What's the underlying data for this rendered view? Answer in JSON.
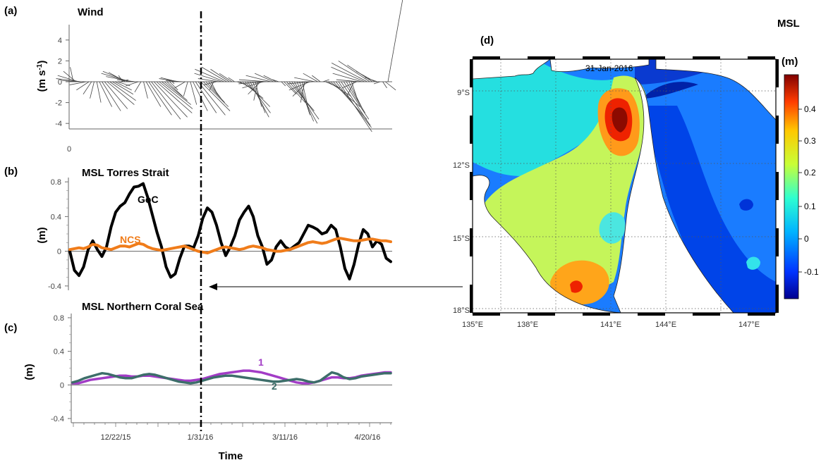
{
  "panels": {
    "a": {
      "letter": "(a)",
      "title": "Wind"
    },
    "b": {
      "letter": "(b)",
      "title": "MSL Torres Strait"
    },
    "c": {
      "letter": "(c)",
      "title": "MSL Northern Coral Sea"
    },
    "d": {
      "letter": "(d)",
      "date_label": "31-Jan-2016"
    }
  },
  "colors": {
    "goc": "#000000",
    "ncs": "#f07c1a",
    "series1": "#a23cc6",
    "series2": "#3d6e6a"
  },
  "chart_data": [
    {
      "id": "a",
      "type": "stick",
      "title": "Wind",
      "ylabel": "(m s-1)",
      "ylim": [
        -5,
        5
      ],
      "yticks": [
        4,
        2,
        0,
        -2,
        -4
      ],
      "x_tick_labels": [
        "0"
      ],
      "u": [
        -0.3,
        -1.2,
        -2.0,
        -2.4,
        -2.1,
        -1.6,
        -1.2,
        -0.8,
        -0.4,
        0.4,
        1.2,
        1.8,
        2.2,
        2.6,
        2.5,
        2.0,
        1.6,
        1.2,
        0.8,
        -0.4,
        -1.6,
        -2.4,
        -2.8,
        -2.6,
        -1.8,
        -1.2,
        -0.6,
        0.4,
        1.4,
        2.2,
        2.8,
        3.2,
        3.4,
        3.2,
        2.8,
        2.2,
        1.5,
        0.8,
        0.2,
        -0.8,
        -1.6,
        -2.0,
        -1.6,
        -1.0,
        -0.4,
        0.6,
        1.4,
        2.0,
        2.6,
        2.8,
        2.4,
        1.8,
        1.2,
        0.6,
        -0.4,
        -1.2,
        -2.0,
        -2.6,
        -2.8,
        -2.4,
        -1.8,
        -1.2,
        -0.6,
        0.6,
        1.4,
        2.0,
        2.4,
        2.2,
        1.8,
        1.2,
        0.6,
        -0.4,
        -1.2,
        -2.0,
        -2.6,
        -2.8,
        -2.4,
        -1.8,
        -1.2,
        -0.6,
        0.4,
        1.2,
        1.8,
        2.4,
        2.6,
        2.2,
        1.6,
        1.0,
        0.6,
        -0.4,
        -1.4,
        -2.0,
        -2.4,
        -2.0,
        -1.4,
        -0.8,
        0.6,
        1.4,
        2.2,
        2.8,
        3.2,
        3.4,
        3.2,
        2.8,
        2.4,
        1.8,
        1.2,
        0.6,
        -0.6,
        -1.4,
        -2.2,
        -2.8,
        -3.2,
        -3.4,
        -3.0,
        -2.4,
        -1.8,
        -1.2,
        -0.6,
        0.4,
        1.0,
        1.4
      ],
      "v": [
        1.4,
        1.0,
        0.6,
        0.3,
        0.1,
        -0.3,
        -0.8,
        -1.2,
        -1.6,
        -2.0,
        -2.4,
        -2.8,
        -2.6,
        -2.2,
        -1.8,
        -1.2,
        -0.8,
        -0.4,
        0.2,
        0.6,
        0.9,
        1.0,
        0.8,
        0.5,
        0.2,
        -0.4,
        -1.0,
        -1.6,
        -2.4,
        -3.2,
        -3.6,
        -3.4,
        -3.0,
        -2.6,
        -2.2,
        -1.8,
        -1.4,
        -0.8,
        -0.2,
        0.2,
        0.4,
        0.3,
        0.1,
        -0.6,
        -1.4,
        -2.2,
        -2.8,
        -3.0,
        -3.2,
        -2.8,
        -2.4,
        -2.0,
        -1.6,
        -1.2,
        -0.8,
        -0.3,
        0.3,
        0.8,
        1.2,
        1.4,
        1.2,
        0.8,
        0.4,
        -0.2,
        -0.8,
        -1.6,
        -2.4,
        -3.0,
        -3.4,
        -3.0,
        -2.4,
        -1.8,
        -1.2,
        -0.6,
        -0.2,
        0.2,
        0.6,
        0.8,
        0.6,
        0.2,
        -0.4,
        -1.2,
        -2.0,
        -2.8,
        -3.6,
        -4.0,
        -3.8,
        -3.2,
        -2.6,
        -2.0,
        -1.4,
        -0.8,
        -0.2,
        0.4,
        0.8,
        0.6,
        0.2,
        -0.6,
        -1.4,
        -2.4,
        -3.6,
        -4.4,
        -4.8,
        -4.2,
        -3.6,
        -3.0,
        -2.4,
        -1.8,
        -1.2,
        -0.6,
        0.2,
        0.8,
        1.4,
        1.8,
        2.0,
        1.6,
        1.0,
        0.4,
        -0.2,
        -0.6,
        -0.8
      ]
    },
    {
      "id": "b",
      "type": "line",
      "title": "MSL Torres Strait",
      "ylabel": "(m)",
      "ylim": [
        -0.45,
        0.85
      ],
      "yticks": [
        0.8,
        0.4,
        0,
        -0.4
      ],
      "series": [
        {
          "name": "GoC",
          "color": "#000000",
          "values": [
            0,
            -0.22,
            -0.28,
            -0.18,
            0.02,
            0.12,
            0.02,
            -0.06,
            0.05,
            0.28,
            0.45,
            0.52,
            0.56,
            0.66,
            0.74,
            0.75,
            0.78,
            0.62,
            0.42,
            0.22,
            0.05,
            -0.18,
            -0.3,
            -0.26,
            -0.08,
            0.06,
            0.06,
            0.04,
            0.18,
            0.38,
            0.5,
            0.45,
            0.3,
            0.1,
            -0.05,
            0.05,
            0.18,
            0.36,
            0.45,
            0.52,
            0.4,
            0.18,
            0.05,
            -0.15,
            -0.1,
            0.05,
            0.12,
            0.05,
            0.02,
            0.06,
            0.1,
            0.2,
            0.3,
            0.28,
            0.25,
            0.2,
            0.22,
            0.3,
            0.25,
            0.05,
            -0.2,
            -0.32,
            -0.15,
            0.08,
            0.25,
            0.2,
            0.05,
            0.12,
            0.08,
            -0.08,
            -0.12
          ]
        },
        {
          "name": "NCS",
          "color": "#f07c1a",
          "values": [
            0.02,
            0.03,
            0.04,
            0.03,
            0.05,
            0.08,
            0.07,
            0.04,
            0.03,
            0.02,
            0.04,
            0.06,
            0.06,
            0.05,
            0.07,
            0.09,
            0.08,
            0.05,
            0.03,
            0.02,
            0.01,
            0.02,
            0.03,
            0.04,
            0.05,
            0.06,
            0.04,
            0.02,
            0.0,
            -0.01,
            -0.02,
            0.0,
            0.02,
            0.04,
            0.05,
            0.04,
            0.03,
            0.02,
            0.03,
            0.05,
            0.06,
            0.05,
            0.04,
            0.02,
            0.01,
            0.0,
            0.0,
            0.01,
            0.02,
            0.04,
            0.06,
            0.08,
            0.1,
            0.11,
            0.1,
            0.09,
            0.1,
            0.12,
            0.14,
            0.15,
            0.14,
            0.13,
            0.12,
            0.12,
            0.13,
            0.14,
            0.14,
            0.13,
            0.12,
            0.12,
            0.11
          ]
        }
      ]
    },
    {
      "id": "c",
      "type": "line",
      "title": "MSL Northern Coral Sea",
      "ylabel": "(m)",
      "ylim": [
        -0.45,
        0.85
      ],
      "yticks": [
        0.8,
        0.4,
        0,
        -0.4
      ],
      "xlabel": "Time",
      "x_tick_labels": [
        "12/22/15",
        "1/31/16",
        "3/11/16",
        "4/20/16"
      ],
      "series": [
        {
          "name": "1",
          "color": "#a23cc6",
          "values": [
            0.02,
            0.02,
            0.04,
            0.06,
            0.07,
            0.08,
            0.09,
            0.1,
            0.11,
            0.11,
            0.1,
            0.1,
            0.11,
            0.11,
            0.1,
            0.09,
            0.08,
            0.07,
            0.06,
            0.05,
            0.05,
            0.06,
            0.07,
            0.09,
            0.11,
            0.13,
            0.14,
            0.15,
            0.16,
            0.17,
            0.17,
            0.16,
            0.15,
            0.13,
            0.11,
            0.09,
            0.07,
            0.05,
            0.03,
            0.02,
            0.02,
            0.03,
            0.05,
            0.07,
            0.09,
            0.09,
            0.08,
            0.08,
            0.09,
            0.11,
            0.12,
            0.13,
            0.14,
            0.15,
            0.15
          ]
        },
        {
          "name": "2",
          "color": "#3d6e6a",
          "values": [
            0.03,
            0.05,
            0.08,
            0.1,
            0.12,
            0.14,
            0.13,
            0.11,
            0.09,
            0.08,
            0.08,
            0.1,
            0.12,
            0.13,
            0.12,
            0.1,
            0.08,
            0.06,
            0.04,
            0.03,
            0.02,
            0.03,
            0.05,
            0.07,
            0.09,
            0.1,
            0.11,
            0.11,
            0.1,
            0.09,
            0.08,
            0.07,
            0.06,
            0.05,
            0.04,
            0.04,
            0.05,
            0.06,
            0.07,
            0.06,
            0.04,
            0.03,
            0.05,
            0.1,
            0.15,
            0.13,
            0.09,
            0.07,
            0.08,
            0.1,
            0.11,
            0.12,
            0.13,
            0.14,
            0.14
          ]
        }
      ]
    },
    {
      "id": "d",
      "type": "heatmap",
      "title": "",
      "date_label": "31-Jan-2016",
      "x_tick_labels": [
        "135°E",
        "138°E",
        "141°E",
        "144°E",
        "147°E"
      ],
      "y_tick_labels": [
        "9°S",
        "12°S",
        "15°S",
        "18°S"
      ],
      "colorbar": {
        "title_line1": "MSL",
        "title_line2": "(m)",
        "ticks": [
          "0.4",
          "0.3",
          "0.2",
          "0.1",
          "0",
          "-0.1"
        ]
      }
    }
  ]
}
